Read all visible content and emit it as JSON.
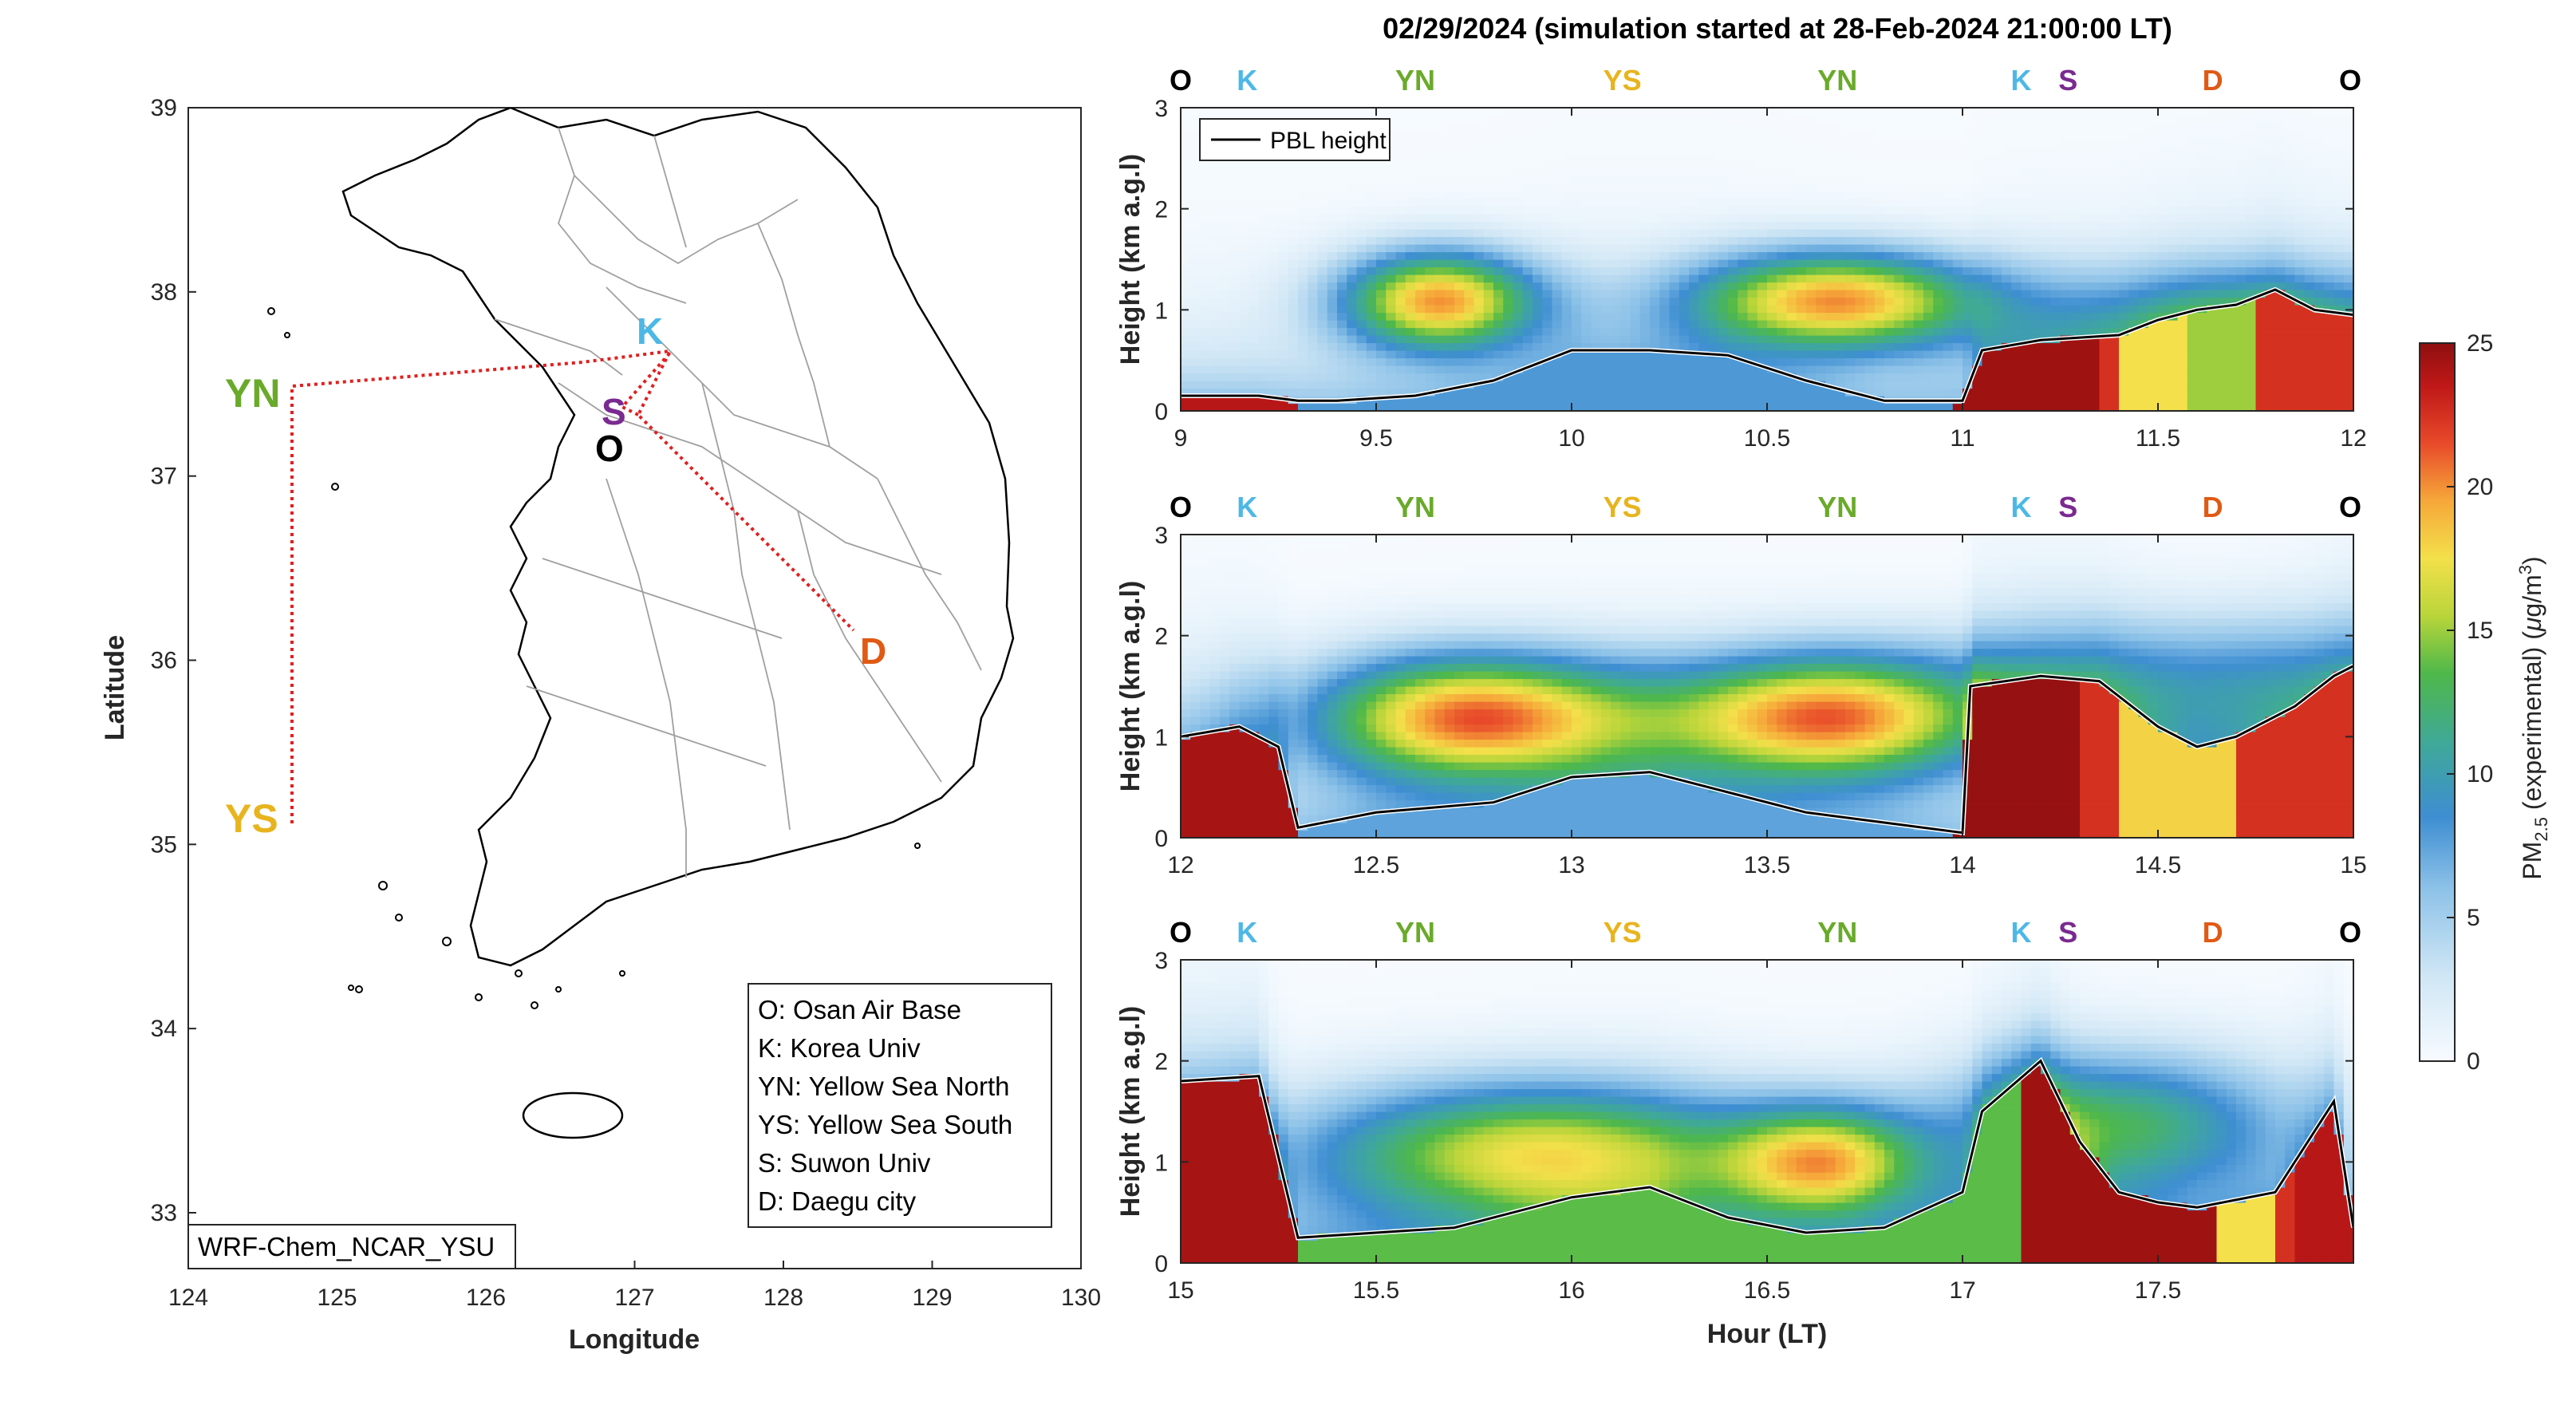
{
  "figure_title": "02/29/2024 (simulation started at 28-Feb-2024 21:00:00 LT)",
  "colors": {
    "O": "#000000",
    "K": "#4db8e6",
    "YN": "#6aaa2a",
    "YS": "#e8b41e",
    "S": "#7a2a90",
    "D": "#e05a14",
    "route": "#e02020"
  },
  "map": {
    "xlabel": "Longitude",
    "ylabel": "Latitude",
    "xticks": [
      "124",
      "125",
      "126",
      "127",
      "128",
      "129",
      "130"
    ],
    "yticks": [
      "33",
      "34",
      "35",
      "36",
      "37",
      "38",
      "39"
    ],
    "model_label": "WRF-Chem_NCAR_YSU",
    "legend": [
      "O: Osan Air Base",
      "K: Korea Univ",
      "YN: Yellow Sea North",
      "YS: Yellow Sea South",
      "S: Suwon Univ",
      "D: Daegu city"
    ],
    "stations": [
      {
        "code": "K",
        "lon": 127.2,
        "lat": 37.7
      },
      {
        "code": "S",
        "lon": 126.95,
        "lat": 37.33
      },
      {
        "code": "O",
        "lon": 126.85,
        "lat": 37.1
      },
      {
        "code": "YN",
        "lon": 124.55,
        "lat": 37.4
      },
      {
        "code": "YS",
        "lon": 124.55,
        "lat": 35.05
      },
      {
        "code": "D",
        "lon": 128.6,
        "lat": 35.95
      }
    ]
  },
  "colorbar": {
    "label": "PM2.5 (experimental) (μg/m3)",
    "label_main": "PM",
    "label_sub": "2.5",
    "label_rest": " (experimental) (",
    "label_mu": "μ",
    "label_unit": "g/m",
    "label_sup": "3",
    "label_close": ")",
    "ticks": [
      "0",
      "5",
      "10",
      "15",
      "20",
      "25"
    ],
    "range": [
      0,
      25
    ]
  },
  "curtain_common": {
    "ylabel": "Height (km a.g.l)",
    "yticks": [
      "0",
      "1",
      "2",
      "3"
    ],
    "ylim": [
      0,
      3
    ],
    "legend_label": "PBL height",
    "xlabel": "Hour (LT)"
  },
  "chart_data": [
    {
      "type": "heatmap",
      "panel": 1,
      "xlim": [
        9,
        12
      ],
      "xticks": [
        "9",
        "9.5",
        "10",
        "10.5",
        "11",
        "11.5",
        "12"
      ],
      "station_sequence": [
        {
          "code": "O",
          "x": 9.0
        },
        {
          "code": "K",
          "x": 9.17
        },
        {
          "code": "YN",
          "x": 9.6
        },
        {
          "code": "YS",
          "x": 10.13
        },
        {
          "code": "YN",
          "x": 10.68
        },
        {
          "code": "K",
          "x": 11.15
        },
        {
          "code": "S",
          "x": 11.27
        },
        {
          "code": "D",
          "x": 11.64
        },
        {
          "code": "O",
          "x": 12.0
        }
      ],
      "pbl_height": {
        "x": [
          9.0,
          9.2,
          9.3,
          9.4,
          9.6,
          9.8,
          10.0,
          10.2,
          10.4,
          10.6,
          10.8,
          11.0,
          11.05,
          11.2,
          11.4,
          11.5,
          11.6,
          11.7,
          11.8,
          11.9,
          12.0
        ],
        "y": [
          0.15,
          0.15,
          0.1,
          0.1,
          0.15,
          0.3,
          0.6,
          0.6,
          0.55,
          0.3,
          0.1,
          0.1,
          0.6,
          0.7,
          0.75,
          0.9,
          1.0,
          1.05,
          1.2,
          1.0,
          0.95
        ]
      }
    },
    {
      "type": "heatmap",
      "panel": 2,
      "xlim": [
        12,
        15
      ],
      "xticks": [
        "12",
        "12.5",
        "13",
        "13.5",
        "14",
        "14.5",
        "15"
      ],
      "station_sequence": [
        {
          "code": "O",
          "x": 12.0
        },
        {
          "code": "K",
          "x": 12.17
        },
        {
          "code": "YN",
          "x": 12.6
        },
        {
          "code": "YS",
          "x": 13.13
        },
        {
          "code": "YN",
          "x": 13.68
        },
        {
          "code": "K",
          "x": 14.15
        },
        {
          "code": "S",
          "x": 14.27
        },
        {
          "code": "D",
          "x": 14.64
        },
        {
          "code": "O",
          "x": 15.0
        }
      ],
      "pbl_height": {
        "x": [
          12.0,
          12.15,
          12.25,
          12.3,
          12.5,
          12.8,
          13.0,
          13.2,
          13.4,
          13.6,
          13.8,
          14.0,
          14.02,
          14.2,
          14.35,
          14.5,
          14.6,
          14.7,
          14.85,
          14.95,
          15.0
        ],
        "y": [
          1.0,
          1.1,
          0.9,
          0.1,
          0.25,
          0.35,
          0.6,
          0.65,
          0.45,
          0.25,
          0.15,
          0.05,
          1.5,
          1.6,
          1.55,
          1.1,
          0.9,
          1.0,
          1.3,
          1.6,
          1.7
        ]
      }
    },
    {
      "type": "heatmap",
      "panel": 3,
      "xlim": [
        15,
        18
      ],
      "xticks": [
        "15",
        "15.5",
        "16",
        "16.5",
        "17",
        "17.5"
      ],
      "station_sequence": [
        {
          "code": "O",
          "x": 15.0
        },
        {
          "code": "K",
          "x": 15.17
        },
        {
          "code": "YN",
          "x": 15.6
        },
        {
          "code": "YS",
          "x": 16.13
        },
        {
          "code": "YN",
          "x": 16.68
        },
        {
          "code": "K",
          "x": 17.15
        },
        {
          "code": "S",
          "x": 17.27
        },
        {
          "code": "D",
          "x": 17.64
        },
        {
          "code": "O",
          "x": 18.0
        }
      ],
      "pbl_height": {
        "x": [
          15.0,
          15.2,
          15.3,
          15.5,
          15.7,
          16.0,
          16.2,
          16.4,
          16.6,
          16.8,
          17.0,
          17.05,
          17.2,
          17.3,
          17.4,
          17.5,
          17.6,
          17.8,
          17.95,
          18.0
        ],
        "y": [
          1.8,
          1.85,
          0.25,
          0.3,
          0.35,
          0.65,
          0.75,
          0.45,
          0.3,
          0.35,
          0.7,
          1.5,
          2.0,
          1.2,
          0.7,
          0.6,
          0.55,
          0.7,
          1.6,
          0.35
        ]
      }
    }
  ]
}
